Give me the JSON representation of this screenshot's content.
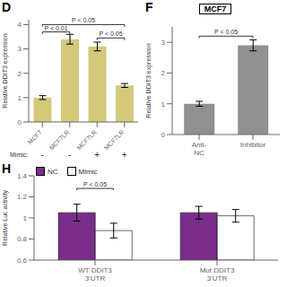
{
  "chart_data": [
    {
      "type": "bar",
      "panel_label": "D",
      "categories": [
        "MCF7",
        "MCF7LR",
        "MCF7LR",
        "MCF7LR"
      ],
      "values": [
        1.0,
        3.4,
        3.1,
        1.5
      ],
      "errors": [
        0.08,
        0.2,
        0.18,
        0.08
      ],
      "color": "#d4c97a",
      "ylabel": "Relative DDIT3 expression",
      "xlabel": "Mimic:",
      "ylim": [
        0,
        4.2
      ],
      "yticks": [
        0,
        1,
        2,
        3,
        4
      ],
      "grid": false,
      "annotations": [
        {
          "text": "P < 0.05",
          "from": 0,
          "to": 3,
          "y": 4.0
        },
        {
          "text": "P < 0.01",
          "from": 0,
          "to": 1,
          "y": 3.7
        },
        {
          "text": "P < 0.05",
          "from": 2,
          "to": 3,
          "y": 3.45
        },
        {
          "text": "-",
          "category": 0
        },
        {
          "text": "-",
          "category": 1
        },
        {
          "text": "+",
          "category": 2
        },
        {
          "text": "+",
          "category": 3
        }
      ]
    },
    {
      "type": "bar",
      "panel_label": "F",
      "title": "MCF7",
      "categories": [
        "Anti-\nNC",
        "Inhibitor"
      ],
      "values": [
        1.0,
        2.9
      ],
      "errors": [
        0.08,
        0.18
      ],
      "color": "#909090",
      "ylabel": "Relative DDIT3 expression",
      "ylim": [
        0,
        3.5
      ],
      "yticks": [
        0,
        1,
        2,
        3
      ],
      "grid": false,
      "annotations": [
        {
          "text": "P < 0.05",
          "from": 0,
          "to": 1,
          "y": 3.2
        }
      ]
    },
    {
      "type": "bar",
      "panel_label": "H",
      "categories": [
        "WT DDIT3\n3'UTR",
        "Mut DDIT3\n3'UTR"
      ],
      "series": [
        {
          "name": "NC",
          "color": "#7b2d8b",
          "values": [
            1.05,
            1.05
          ],
          "errors": [
            0.08,
            0.06
          ]
        },
        {
          "name": "Mimic",
          "color": "#ffffff",
          "values": [
            0.88,
            1.02
          ],
          "errors": [
            0.07,
            0.06
          ]
        }
      ],
      "ylabel": "Relative Luc activity",
      "ylim": [
        0.6,
        1.4
      ],
      "yticks": [
        0.6,
        0.8,
        1,
        1.2,
        1.4
      ],
      "grid": false,
      "legend": "upper left",
      "annotations": [
        {
          "text": "P < 0.05",
          "category": 0,
          "y": 1.28
        }
      ]
    }
  ]
}
